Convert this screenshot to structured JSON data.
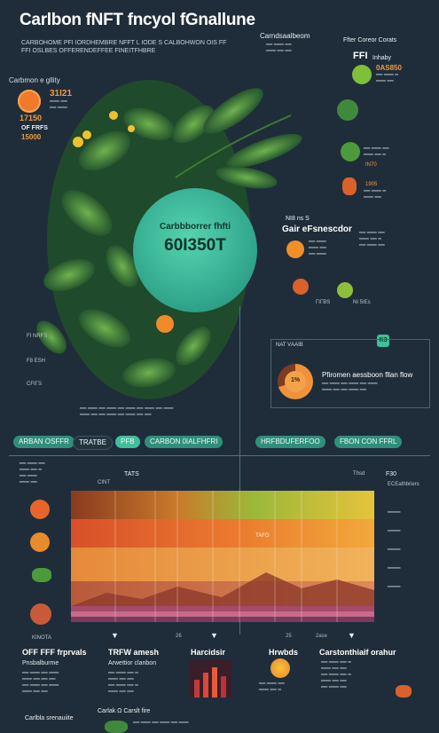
{
  "header": {
    "title": "Carlbon fNFT fncyol fGnallune",
    "subtitle_1": "CARBOHOME PFI IORDHEMBRE NFFT L IODE S CALBOHWON OIS FF",
    "subtitle_2": "FFI OSLBES OFFERENDEFFEE FINEITFHBRE"
  },
  "left_stats": {
    "heading": "Carbmon e gllity",
    "value_1": "31Ι21",
    "value_2": "17150",
    "label_3": "OF FRFS",
    "value_3": "15000"
  },
  "center_circle": {
    "label": "Carbbborrer fhfti",
    "value": "60I350T"
  },
  "top_right": {
    "heading": "Carndsaalbeom",
    "side_heading": "Ffter Coreor Corats",
    "label_ffi": "FFI",
    "label_ffi_sub": "Inhaby",
    "label_value": "0AS850"
  },
  "mid_right": {
    "heading": "NI8 ns S",
    "title": "Gair eFsnescdor",
    "badge": "K3",
    "note": "Pfiromen aessboon fllan flow",
    "ring_label": "1%"
  },
  "mid_right_small": {
    "label_1": "IN70",
    "label_2": "1905",
    "label_3": "ΓΙΓΒS",
    "label_4": "NAT VΑΑΙΒ",
    "label_5": "NI 5IEs"
  },
  "left_labels": {
    "label_1": "FI NRFS",
    "label_2": "F8 ESH",
    "label_3": "CFΙΓS"
  },
  "timeline_pills": [
    {
      "label": "ARBAN OSFFR"
    },
    {
      "label": "TRATBE"
    },
    {
      "label": "PFB"
    },
    {
      "label": "CARBON 0IALFHFRI"
    },
    {
      "label": "HRFBDUFERFOO"
    },
    {
      "label": "FBON CON FFRL"
    }
  ],
  "chart_labels": {
    "top_label": "TATS",
    "top_sub": "CINT",
    "right_top": "F30",
    "right_sub": "ECEathbriers",
    "mid_label": "TAFO",
    "right_label": "Thsd",
    "left_note": "KINOTA",
    "ticks": [
      "26",
      "25",
      "2ase"
    ]
  },
  "bottom": {
    "col1_title": "OFF FFF frprvals",
    "col1_sub": "Pnsbalburme",
    "col2_title": "TRFW amesh",
    "col2_sub": "Arwettior clanbon",
    "col3_title": "Harcidsir",
    "col4_title": "Hrwbds",
    "col5_title": "Carstonthiaif orahur",
    "footer_left": "Carlbla srenauiite",
    "footer_mid": "Carlak Ω Carslt fire"
  },
  "colors": {
    "background": "#1f2d3a",
    "accent_teal": "#3fbf9a",
    "accent_orange": "#f0923a",
    "leaf_green": "#3f8a3a"
  }
}
